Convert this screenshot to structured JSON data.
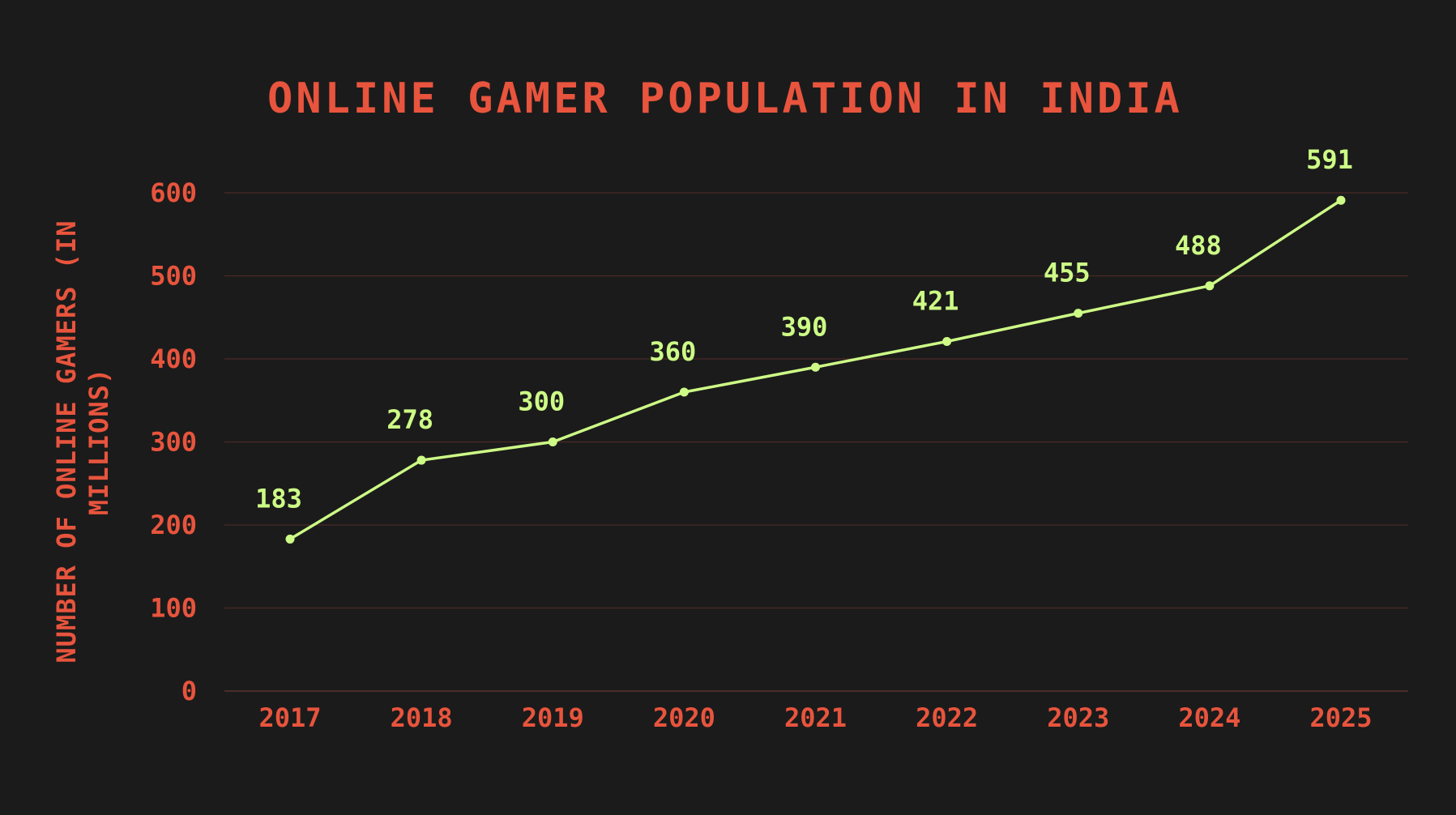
{
  "chart_data": {
    "type": "line",
    "title": "Online Gamer Population in India",
    "xlabel": "",
    "ylabel": "Number of Online Gamers (In Millions)",
    "categories": [
      "2017",
      "2018",
      "2019",
      "2020",
      "2021",
      "2022",
      "2023",
      "2024",
      "2025"
    ],
    "series": [
      {
        "name": "",
        "values": [
          183,
          278,
          300,
          360,
          390,
          421,
          455,
          488,
          591
        ]
      }
    ],
    "ylim": [
      0,
      600
    ],
    "yticks": [
      0,
      100,
      200,
      300,
      400,
      500,
      600
    ],
    "grid": true,
    "data_labels": true,
    "colors": {
      "background": "#1b1b1b",
      "text": "#e8543d",
      "line": "#cdfb86",
      "grid": "#4a2b26"
    }
  }
}
